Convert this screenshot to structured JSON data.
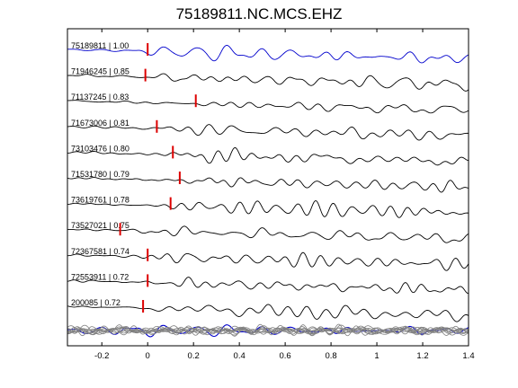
{
  "title": "75189811.NC.MCS.EHZ",
  "chart_data": {
    "type": "line",
    "title": "75189811.NC.MCS.EHZ",
    "xlabel": "",
    "ylabel": "",
    "xlim": [
      -0.35,
      1.4
    ],
    "x_ticks": [
      -0.2,
      0,
      0.2,
      0.4,
      0.6,
      0.8,
      1,
      1.2,
      1.4
    ],
    "x_tick_labels": [
      "-0.2",
      "0",
      "0.2",
      "0.4",
      "0.6",
      "0.8",
      "1",
      "1.2",
      "1.4"
    ],
    "grid": false,
    "colors": {
      "reference": "#0000cc",
      "trace": "#000000",
      "pick": "#dd0000",
      "stack": "#808080"
    },
    "series": [
      {
        "name": "75189811 | 1.00",
        "pick_time": 0.0,
        "color": "#0000cc"
      },
      {
        "name": "71946245 | 0.85",
        "pick_time": -0.01,
        "color": "#000000"
      },
      {
        "name": "71137245 | 0.83",
        "pick_time": 0.21,
        "color": "#000000"
      },
      {
        "name": "71673006 | 0.81",
        "pick_time": 0.04,
        "color": "#000000"
      },
      {
        "name": "73103476 | 0.80",
        "pick_time": 0.11,
        "color": "#000000"
      },
      {
        "name": "71531780 | 0.79",
        "pick_time": 0.14,
        "color": "#000000"
      },
      {
        "name": "73619761 | 0.78",
        "pick_time": 0.1,
        "color": "#000000"
      },
      {
        "name": "73527021 | 0.75",
        "pick_time": -0.12,
        "color": "#000000"
      },
      {
        "name": "72367581 | 0.74",
        "pick_time": 0.0,
        "color": "#000000"
      },
      {
        "name": "72553911 | 0.72",
        "pick_time": 0.0,
        "color": "#000000"
      },
      {
        "name": "200085 | 0.72",
        "pick_time": -0.02,
        "color": "#000000"
      }
    ]
  }
}
